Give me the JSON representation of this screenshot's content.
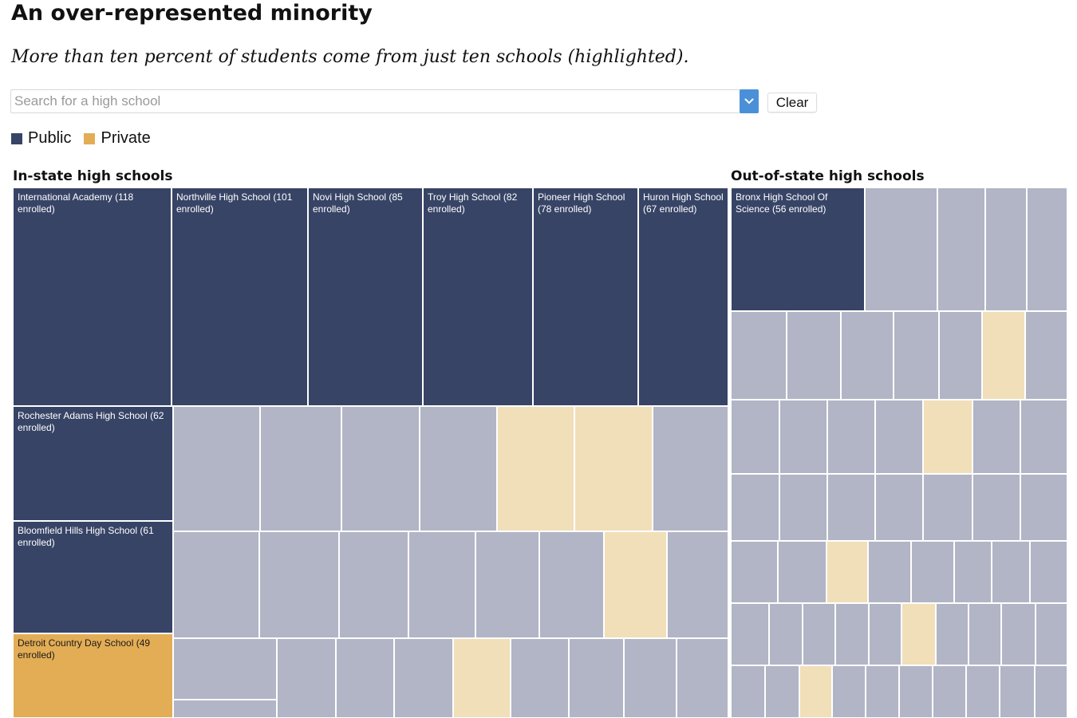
{
  "header": {
    "title": "An over-represented minority",
    "subtitle": "More than ten percent of students come from just ten schools (highlighted)."
  },
  "search": {
    "placeholder": "Search for a high school",
    "value": ""
  },
  "controls": {
    "clear_label": "Clear"
  },
  "legend": [
    {
      "label": "Public",
      "color": "#374466"
    },
    {
      "label": "Private",
      "color": "#e3ad55"
    }
  ],
  "colors": {
    "public_highlight": "#374466",
    "private_highlight": "#e3ad55",
    "public_dim": "#b1b5c5",
    "private_dim": "#f1dfb9",
    "border": "#ffffff"
  },
  "icons": {
    "dropdown": "chevron-down-icon"
  },
  "chart_data": [
    {
      "type": "treemap",
      "title": "In-state high schools",
      "highlighted": [
        {
          "label": "International Academy (118 enrolled)",
          "name": "International Academy",
          "value": 118,
          "type": "public"
        },
        {
          "label": "Northville High School (101 enrolled)",
          "name": "Northville High School",
          "value": 101,
          "type": "public"
        },
        {
          "label": "Novi High School (85 enrolled)",
          "name": "Novi High School",
          "value": 85,
          "type": "public"
        },
        {
          "label": "Troy High School (82 enrolled)",
          "name": "Troy High School",
          "value": 82,
          "type": "public"
        },
        {
          "label": "Pioneer High School (78 enrolled)",
          "name": "Pioneer High School",
          "value": 78,
          "type": "public"
        },
        {
          "label": "Huron High School (67 enrolled)",
          "name": "Huron High School",
          "value": 67,
          "type": "public"
        },
        {
          "label": "Rochester Adams High School (62 enrolled)",
          "name": "Rochester Adams High School",
          "value": 62,
          "type": "public"
        },
        {
          "label": "Bloomfield Hills High School (61 enrolled)",
          "name": "Bloomfield Hills High School",
          "value": 61,
          "type": "public"
        },
        {
          "label": "Detroit Country Day School (49 enrolled)",
          "name": "Detroit Country Day School",
          "value": 49,
          "type": "private"
        }
      ],
      "other_rows": [
        [
          "public",
          "public",
          "public",
          "public",
          "private",
          "private",
          "public"
        ],
        [
          "public",
          "public",
          "public",
          "public",
          "public",
          "public",
          "private",
          "public"
        ],
        [
          "public",
          "public",
          "public",
          "public",
          "private",
          "public",
          "public",
          "public",
          "public"
        ]
      ]
    },
    {
      "type": "treemap",
      "title": "Out-of-state high schools",
      "highlighted": [
        {
          "label": "Bronx High School Of Science (56 enrolled)",
          "name": "Bronx High School Of Science",
          "value": 56,
          "type": "public"
        }
      ],
      "first_row_others": [
        "public",
        "public",
        "public",
        "public"
      ],
      "other_rows": [
        [
          "public",
          "public",
          "public",
          "public",
          "public",
          "private",
          "public"
        ],
        [
          "public",
          "public",
          "public",
          "public",
          "private",
          "public",
          "public"
        ],
        [
          "public",
          "public",
          "public",
          "public",
          "public",
          "public",
          "public"
        ],
        [
          "public",
          "public",
          "private",
          "public",
          "public",
          "public",
          "public",
          "public"
        ],
        [
          "public",
          "public",
          "public",
          "public",
          "public",
          "private",
          "public",
          "public",
          "public",
          "public"
        ],
        [
          "public",
          "public",
          "private",
          "public",
          "public",
          "public",
          "public",
          "public",
          "public",
          "public",
          "private"
        ]
      ]
    }
  ]
}
